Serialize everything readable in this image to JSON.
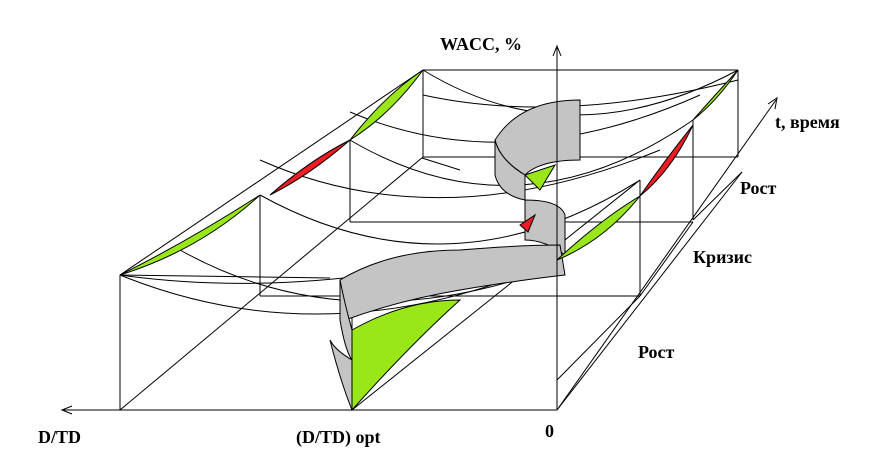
{
  "labels": {
    "y_axis": "WACC, %",
    "t_axis": "t, время",
    "x_axis_left": "D/TD",
    "x_opt": "(D/TD) opt",
    "origin": "0"
  },
  "phases": [
    "Рост",
    "Кризис",
    "Рост"
  ],
  "colors": {
    "line": "#000000",
    "growth_fill": "#99e619",
    "crisis_fill": "#ee1c24",
    "ribbon_fill": "#c4c4c4",
    "background": "#ffffff"
  }
}
